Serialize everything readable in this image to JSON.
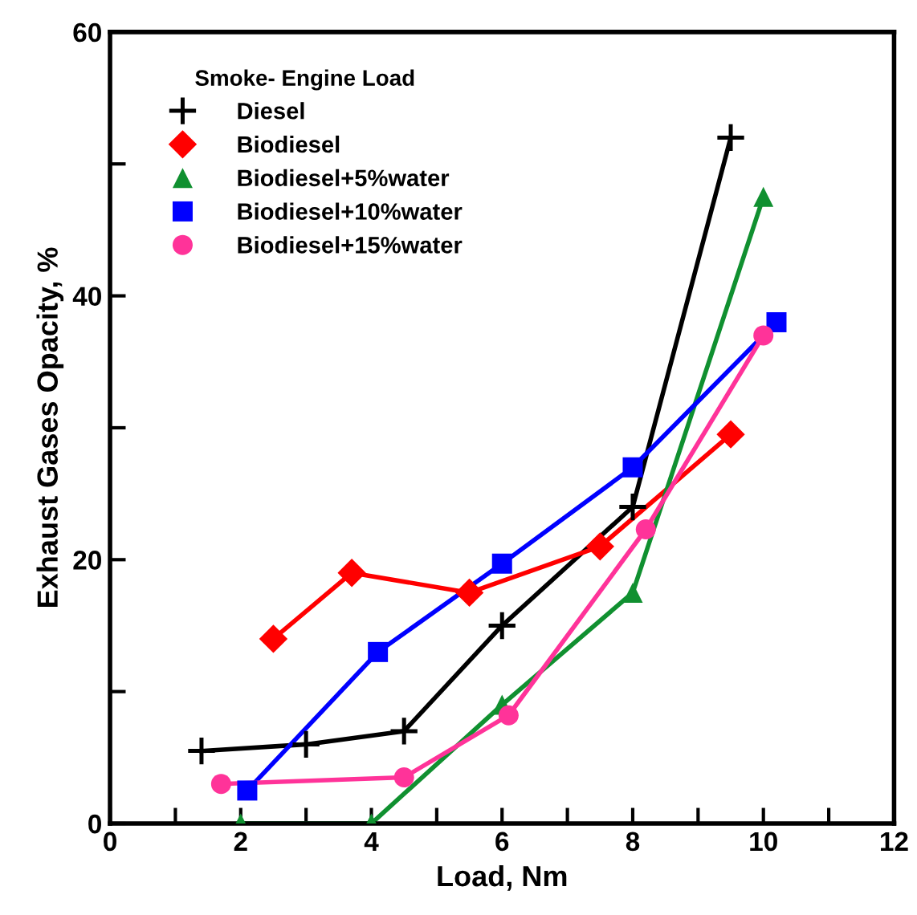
{
  "chart_data": {
    "type": "line",
    "xlabel": "Load, Nm",
    "ylabel": "Exhaust Gases Opacity, %",
    "legend_title": "Smoke- Engine Load",
    "legend": "top left",
    "grid": false,
    "line_style": "solid",
    "xlim": [
      0,
      12
    ],
    "ylim": [
      0,
      60
    ],
    "xticks": [
      0,
      {
        "value": 1,
        "label": null
      },
      2,
      {
        "value": 3,
        "label": null
      },
      4,
      {
        "value": 5,
        "label": null
      },
      6,
      {
        "value": 7,
        "label": null
      },
      8,
      {
        "value": 9,
        "label": null
      },
      10,
      {
        "value": 11,
        "label": null
      },
      12
    ],
    "yticks": [
      0,
      {
        "value": 10,
        "label": null
      },
      20,
      {
        "value": 30,
        "label": null
      },
      40,
      {
        "value": 50,
        "label": null
      },
      60
    ],
    "series": [
      {
        "name": "Diesel",
        "color": "#000000",
        "marker": "cross",
        "x": [
          1.4,
          3,
          4.5,
          6,
          8,
          9.5
        ],
        "values": [
          5.5,
          6,
          7,
          15,
          24,
          52
        ]
      },
      {
        "name": "Biodiesel",
        "color": "#ff0000",
        "marker": "diamond",
        "x": [
          2.5,
          3.7,
          5.5,
          7.5,
          9.5
        ],
        "values": [
          14,
          19,
          17.5,
          21,
          29.5
        ]
      },
      {
        "name": "Biodiesel+5%water",
        "color": "#109030",
        "marker": "triangle",
        "x": [
          2,
          4,
          6,
          8,
          10
        ],
        "values": [
          0,
          0,
          9,
          17.5,
          47.5
        ]
      },
      {
        "name": "Biodiesel+10%water",
        "color": "#0000ff",
        "marker": "square",
        "x": [
          2.1,
          4.1,
          6,
          8,
          10.2
        ],
        "values": [
          2.5,
          13,
          19.7,
          27,
          38
        ]
      },
      {
        "name": "Biodiesel+15%water",
        "color": "#ff3399",
        "marker": "circle",
        "x": [
          1.7,
          4.5,
          6.1,
          8.2,
          10
        ],
        "values": [
          3,
          3.5,
          8.2,
          22.3,
          37
        ]
      }
    ]
  }
}
